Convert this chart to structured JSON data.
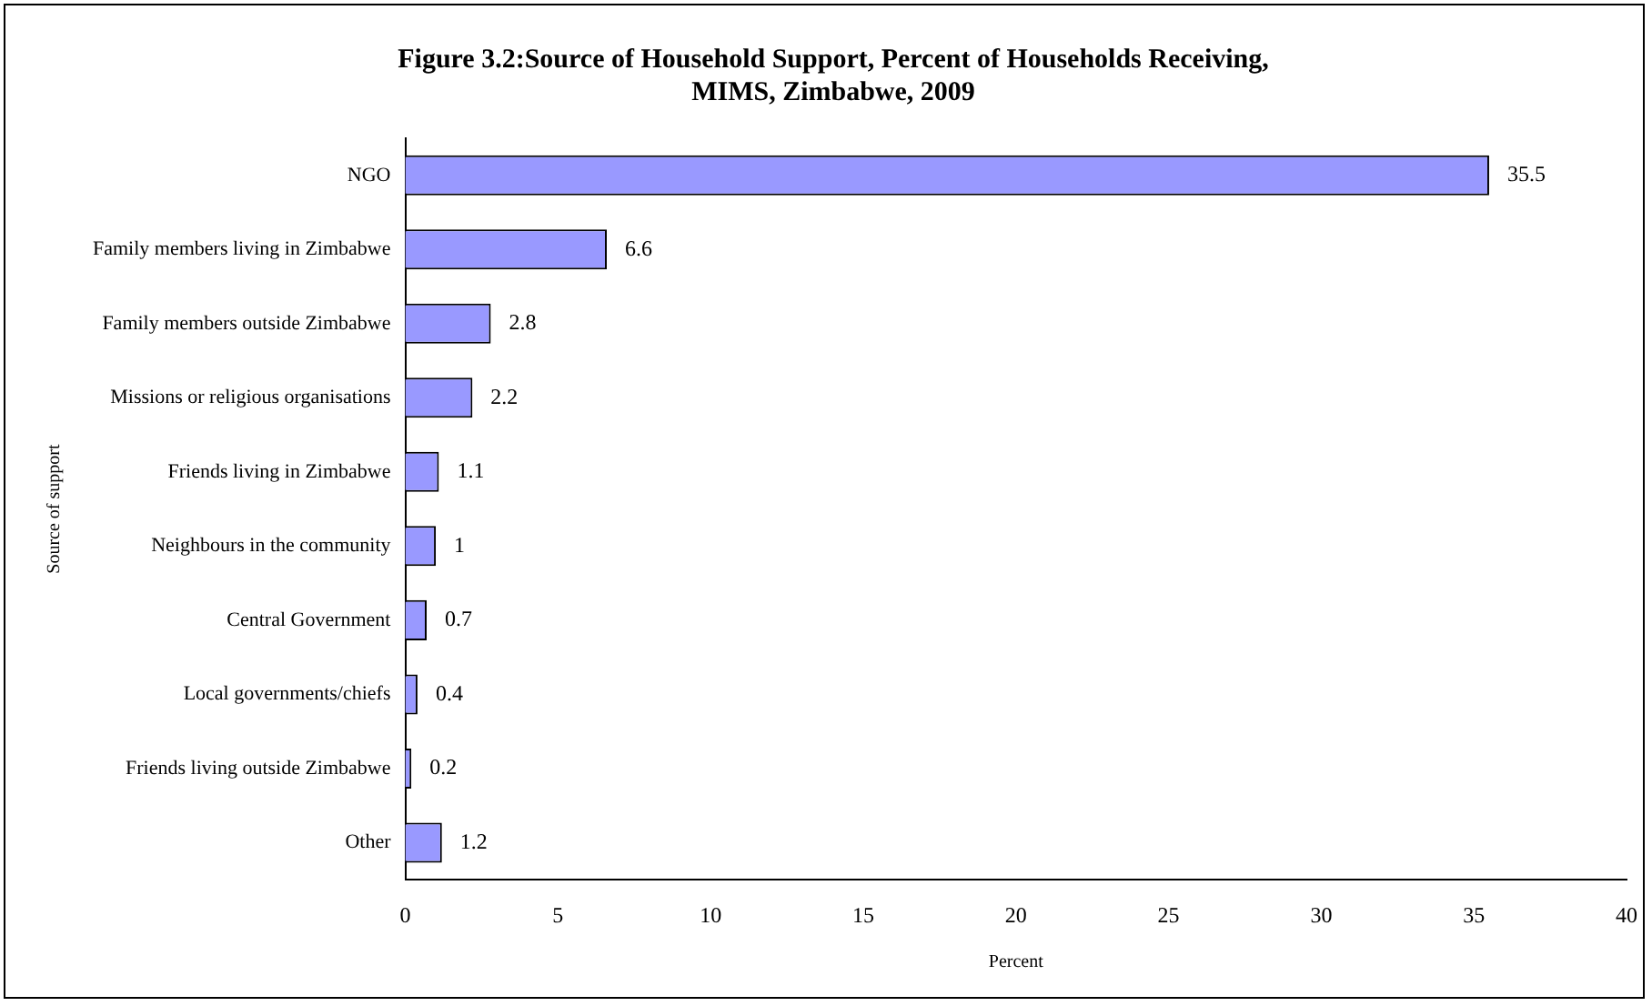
{
  "chart_data": {
    "type": "bar",
    "orientation": "horizontal",
    "title": "Figure 3.2:Source of Household Support, Percent of Households Receiving, MIMS, Zimbabwe, 2009",
    "xlabel": "Percent",
    "ylabel": "Source of support",
    "categories": [
      "NGO",
      "Family members living in Zimbabwe",
      "Family members outside Zimbabwe",
      "Missions or religious organisations",
      "Friends living in Zimbabwe",
      "Neighbours in the community",
      "Central Government",
      "Local governments/chiefs",
      "Friends living outside Zimbabwe",
      "Other"
    ],
    "values": [
      35.5,
      6.6,
      2.8,
      2.2,
      1.1,
      1,
      0.7,
      0.4,
      0.2,
      1.2
    ],
    "color": "#9999ff",
    "xlim": [
      0,
      40
    ],
    "xticks": [
      0,
      5,
      10,
      15,
      20,
      25,
      30,
      35,
      40
    ],
    "grid": false,
    "legend": false,
    "data_labels": true
  }
}
